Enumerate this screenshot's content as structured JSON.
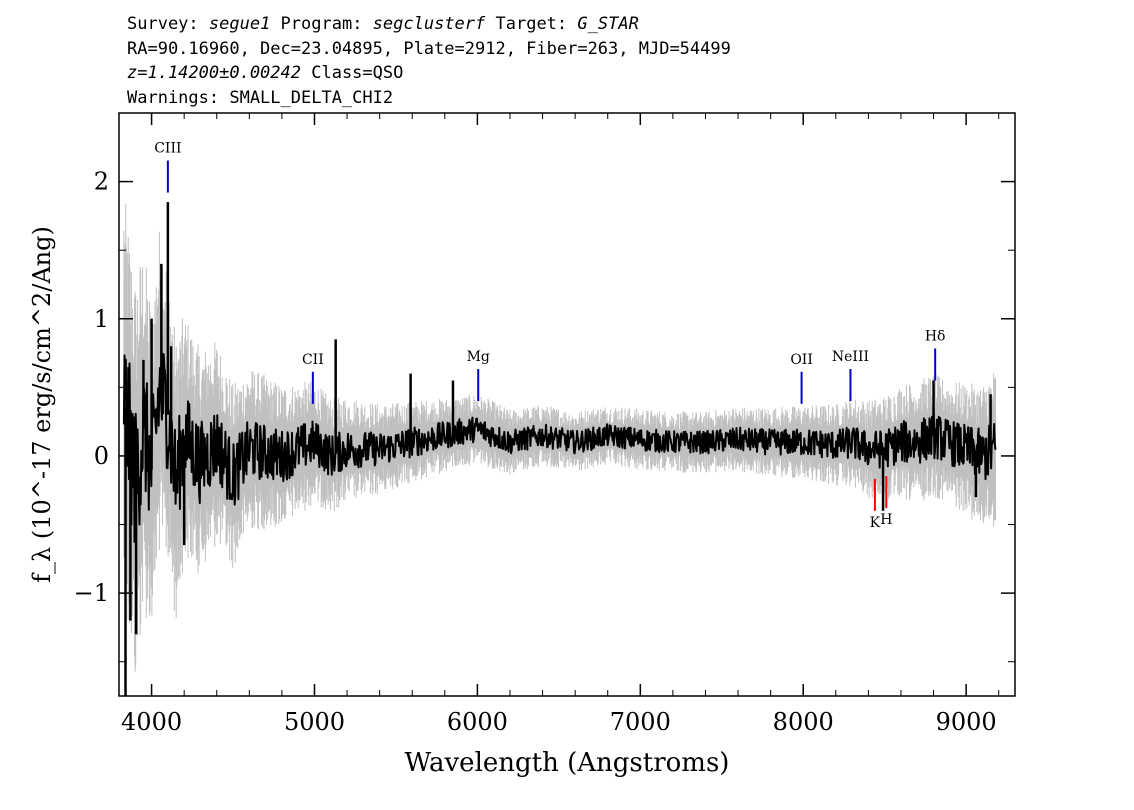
{
  "header": {
    "survey_label": "Survey: ",
    "survey": "segue1",
    "program_label": " Program: ",
    "program": "segclusterf",
    "target_label": " Target: ",
    "target": "G_STAR",
    "line2": "RA=90.16960, Dec=23.04895, Plate=2912, Fiber=263, MJD=54499",
    "redshift": "z=1.14200±0.00242",
    "class_text": " Class=QSO",
    "warnings": "Warnings: SMALL_DELTA_CHI2"
  },
  "colors": {
    "flux": "#000000",
    "error": "#c0c0c0",
    "emission_marker": "#0000cc",
    "absorption_marker": "#ff0000"
  },
  "chart_data": {
    "type": "line",
    "xlabel": "Wavelength (Angstroms)",
    "ylabel": "f_λ (10^-17 erg/s/cm^2/Ang)",
    "xlim": [
      3800,
      9300
    ],
    "ylim": [
      -1.75,
      2.5
    ],
    "xticks": [
      4000,
      5000,
      6000,
      7000,
      8000,
      9000
    ],
    "yticks": [
      -1,
      0,
      1,
      2
    ],
    "ytick_labels": [
      "−1",
      "0",
      "1",
      "2"
    ],
    "grid": false,
    "x": [
      3830,
      3900,
      3950,
      4000,
      4050,
      4100,
      4150,
      4200,
      4300,
      4400,
      4500,
      4600,
      4800,
      5000,
      5100,
      5200,
      5400,
      5600,
      5800,
      6000,
      6200,
      6400,
      6600,
      6800,
      7000,
      7200,
      7400,
      7600,
      7800,
      8000,
      8200,
      8300,
      8400,
      8500,
      8600,
      8700,
      8800,
      8900,
      9000,
      9100,
      9180
    ],
    "series": [
      {
        "name": "flux",
        "values": [
          0.45,
          -0.2,
          0.2,
          -0.1,
          0.5,
          0.3,
          -0.2,
          0.15,
          -0.05,
          0.1,
          -0.15,
          0.05,
          0.0,
          0.1,
          0.0,
          0.05,
          0.05,
          0.1,
          0.15,
          0.2,
          0.1,
          0.15,
          0.1,
          0.15,
          0.12,
          0.1,
          0.1,
          0.12,
          0.1,
          0.1,
          0.08,
          0.1,
          0.05,
          0.05,
          0.1,
          0.1,
          0.15,
          0.1,
          0.05,
          0.0,
          0.05
        ]
      },
      {
        "name": "error",
        "values": [
          1.0,
          1.0,
          0.9,
          0.8,
          0.8,
          0.75,
          0.7,
          0.6,
          0.55,
          0.5,
          0.45,
          0.4,
          0.35,
          0.3,
          0.28,
          0.26,
          0.22,
          0.2,
          0.18,
          0.17,
          0.16,
          0.15,
          0.15,
          0.15,
          0.15,
          0.15,
          0.15,
          0.16,
          0.17,
          0.18,
          0.2,
          0.22,
          0.24,
          0.26,
          0.28,
          0.3,
          0.3,
          0.3,
          0.32,
          0.35,
          0.4
        ]
      }
    ],
    "spikes": [
      {
        "x": 3840,
        "y": -1.8
      },
      {
        "x": 3870,
        "y": -1.2
      },
      {
        "x": 3905,
        "y": -1.3
      },
      {
        "x": 3950,
        "y": 0.7
      },
      {
        "x": 4000,
        "y": 1.0
      },
      {
        "x": 4060,
        "y": 1.4
      },
      {
        "x": 4100,
        "y": 1.85
      },
      {
        "x": 4120,
        "y": 0.8
      },
      {
        "x": 4200,
        "y": -0.65
      },
      {
        "x": 5130,
        "y": 0.85
      },
      {
        "x": 5590,
        "y": 0.6
      },
      {
        "x": 5850,
        "y": 0.55
      },
      {
        "x": 8490,
        "y": -0.4
      },
      {
        "x": 8800,
        "y": 0.55
      },
      {
        "x": 9060,
        "y": -0.3
      },
      {
        "x": 9150,
        "y": 0.45
      }
    ],
    "annotations": [
      {
        "label": "CIII",
        "x": 4100,
        "y": 1.92,
        "color": "blue",
        "position": "above"
      },
      {
        "label": "CII",
        "x": 4990,
        "y": 0.38,
        "color": "blue",
        "position": "above"
      },
      {
        "label": "Mg",
        "x": 6005,
        "y": 0.4,
        "color": "blue",
        "position": "above"
      },
      {
        "label": "OII",
        "x": 7990,
        "y": 0.38,
        "color": "blue",
        "position": "above"
      },
      {
        "label": "NeIII",
        "x": 8290,
        "y": 0.4,
        "color": "blue",
        "position": "above"
      },
      {
        "label": "Hδ",
        "x": 8810,
        "y": 0.55,
        "color": "blue",
        "position": "above"
      },
      {
        "label": "K",
        "x": 8440,
        "y": -0.4,
        "color": "red",
        "position": "below"
      },
      {
        "label": "H",
        "x": 8510,
        "y": -0.38,
        "color": "red",
        "position": "below"
      }
    ]
  }
}
